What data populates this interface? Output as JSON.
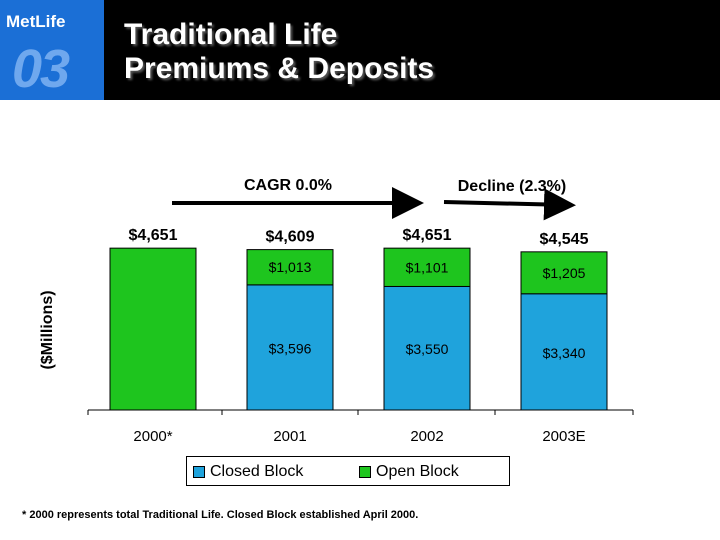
{
  "header": {
    "logo_text": "MetLife",
    "logo_number": "03",
    "title_line1": "Traditional Life",
    "title_line2": "Premiums & Deposits"
  },
  "annotations": {
    "cagr": "CAGR 0.0%",
    "decline": "Decline (2.3%)"
  },
  "footnote": "* 2000 represents total Traditional Life.  Closed Block established April 2000.",
  "colors": {
    "closed_block": "#1fa3dc",
    "open_block": "#1ec51e",
    "header_bg": "#000000",
    "logo_bg": "#1b6fd6"
  },
  "chart_data": {
    "type": "bar",
    "stacked": true,
    "ylabel": "($Millions)",
    "categories": [
      "2000*",
      "2001",
      "2002",
      "2003E"
    ],
    "series": [
      {
        "name": "Closed Block",
        "values": [
          0,
          3596,
          3550,
          3340
        ],
        "labels": [
          "",
          "$3,596",
          "$3,550",
          "$3,340"
        ]
      },
      {
        "name": "Open Block",
        "values": [
          4651,
          1013,
          1101,
          1205
        ],
        "labels": [
          "",
          "$1,013",
          "$1,101",
          "$1,205"
        ]
      }
    ],
    "totals": [
      4651,
      4609,
      4651,
      4545
    ],
    "total_labels": [
      "$4,651",
      "$4,609",
      "$4,651",
      "$4,545"
    ],
    "ylim": [
      0,
      5000
    ],
    "grid": false,
    "legend_position": "bottom"
  }
}
